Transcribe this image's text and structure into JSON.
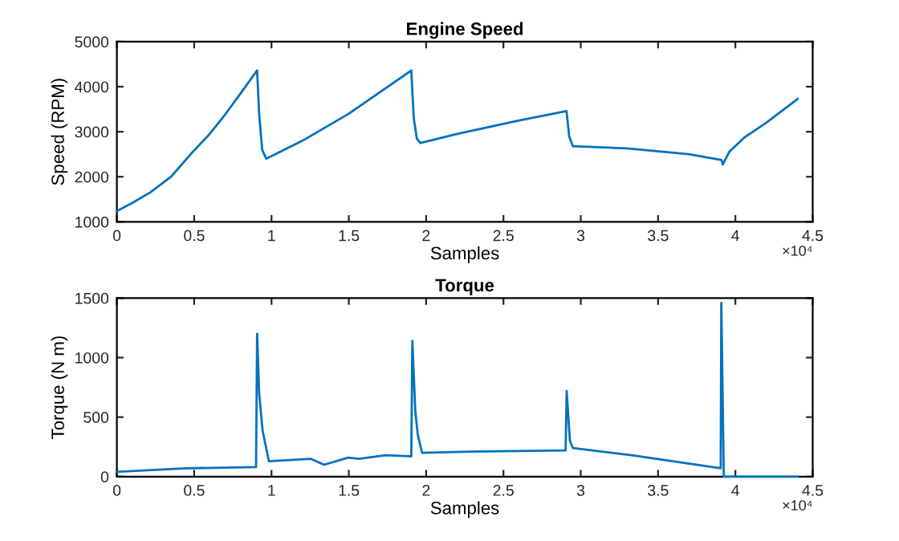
{
  "chart_data": [
    {
      "type": "line",
      "title": "Engine Speed",
      "xlabel": "Samples",
      "ylabel": "Speed (RPM)",
      "annotations": [
        "×10⁴"
      ],
      "series": [
        {
          "color": "#0072bd",
          "x": [
            0,
            0.1,
            0.215,
            0.35,
            0.49,
            0.6,
            0.7,
            0.8,
            0.907,
            0.92,
            0.94,
            0.966,
            1.2,
            1.5,
            1.904,
            1.92,
            1.94,
            1.963,
            2.2,
            2.6,
            2.908,
            2.925,
            2.949,
            3.3,
            3.7,
            3.911,
            3.918,
            3.96,
            4.057,
            4.2,
            4.403
          ],
          "values": [
            1240,
            1420,
            1650,
            2000,
            2550,
            2950,
            3380,
            3850,
            4360,
            3400,
            2600,
            2400,
            2800,
            3400,
            4360,
            3300,
            2850,
            2750,
            2950,
            3250,
            3460,
            2900,
            2680,
            2630,
            2500,
            2370,
            2270,
            2550,
            2870,
            3200,
            3730
          ]
        }
      ],
      "xlim": [
        0,
        4.5
      ],
      "ylim": [
        1000,
        5000
      ],
      "xticks": [
        0,
        0.5,
        1,
        1.5,
        2,
        2.5,
        3,
        3.5,
        4,
        4.5
      ],
      "yticks": [
        1000,
        2000,
        3000,
        4000,
        5000
      ],
      "grid": false,
      "legend": false
    },
    {
      "type": "line",
      "title": "Torque",
      "xlabel": "Samples",
      "ylabel": "Torque (N m)",
      "annotations": [
        "×10⁴"
      ],
      "series": [
        {
          "color": "#0072bd",
          "x": [
            0,
            0.45,
            0.9,
            0.907,
            0.92,
            0.942,
            0.983,
            1.253,
            1.34,
            1.496,
            1.565,
            1.739,
            1.904,
            1.911,
            1.93,
            1.946,
            1.974,
            2.292,
            2.902,
            2.909,
            2.93,
            2.949,
            3.33,
            3.905,
            3.909,
            3.925,
            4.403
          ],
          "values": [
            40,
            70,
            80,
            1200,
            700,
            390,
            130,
            150,
            100,
            160,
            150,
            180,
            170,
            1140,
            550,
            350,
            200,
            210,
            220,
            720,
            300,
            240,
            180,
            70,
            1460,
            0,
            0
          ]
        }
      ],
      "xlim": [
        0,
        4.5
      ],
      "ylim": [
        0,
        1500
      ],
      "xticks": [
        0,
        0.5,
        1,
        1.5,
        2,
        2.5,
        3,
        3.5,
        4,
        4.5
      ],
      "yticks": [
        0,
        500,
        1000,
        1500
      ],
      "grid": false,
      "legend": false
    }
  ]
}
